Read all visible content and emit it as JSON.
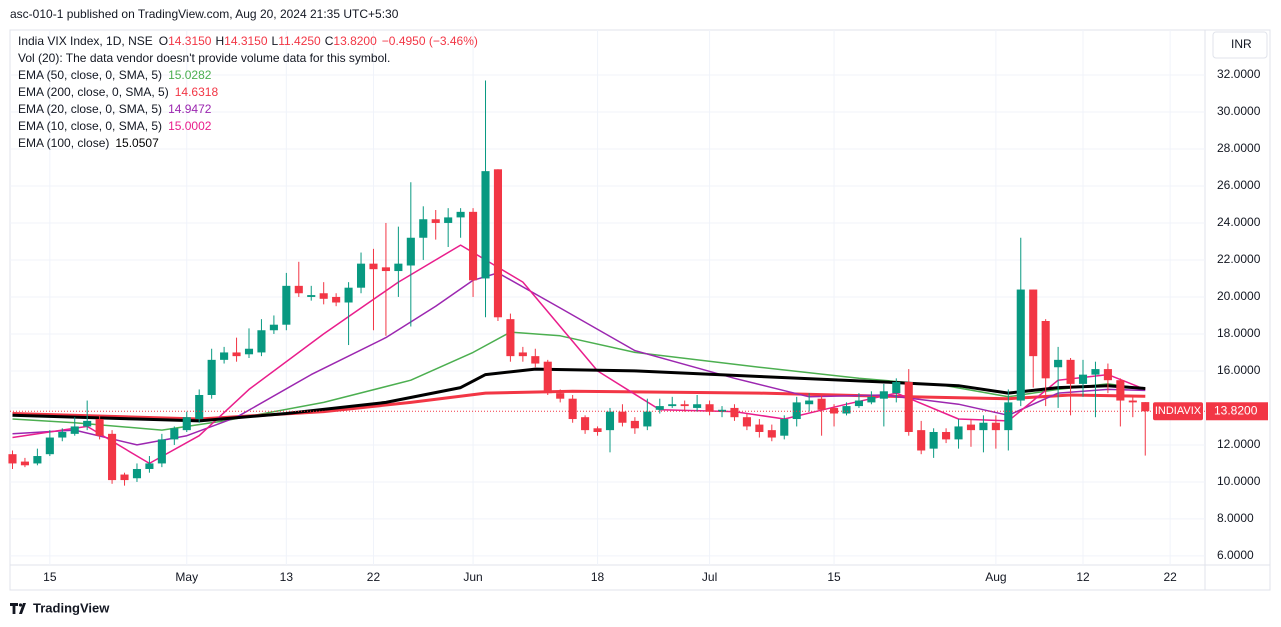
{
  "chart_data": {
    "type": "candlestick",
    "published": "asc-010-1 published on TradingView.com, Aug 20, 2024 21:35 UTC+5:30",
    "title": "India VIX Index, 1D, NSE",
    "ohlc_labels": [
      "O",
      "H",
      "L",
      "C"
    ],
    "ohlc_values": [
      "14.3150",
      "14.3150",
      "11.4250",
      "13.8200"
    ],
    "change": "−0.4950 (−3.46%)",
    "volume_note": "Vol (20): The data vendor doesn't provide volume data for this symbol.",
    "currency": "INR",
    "symbol_tag": "INDIAVIX",
    "last_price_label": "13.8200",
    "brand": "TradingView",
    "up_color": "#089981",
    "down_color": "#f23645",
    "open": [
      11.5,
      11.1,
      11.0,
      11.5,
      12.4,
      12.6,
      13.0,
      13.4,
      12.6,
      10.4,
      10.2,
      10.7,
      11.0,
      12.3,
      12.8,
      13.4,
      14.7,
      16.6,
      17.0,
      16.9,
      17.0,
      18.2,
      18.5,
      20.6,
      20.0,
      20.2,
      20.0,
      19.7,
      20.5,
      21.8,
      21.6,
      21.4,
      21.7,
      23.2,
      24.2,
      24.0,
      24.3,
      24.6,
      21.0,
      26.9,
      18.8,
      17.0,
      16.8,
      16.5,
      14.8,
      14.5,
      13.5,
      12.9,
      12.8,
      13.8,
      13.3,
      13.0,
      13.9,
      14.1,
      14.2,
      14.0,
      14.2,
      13.8,
      14.0,
      13.5,
      13.1,
      12.8,
      12.5,
      13.4,
      14.2,
      14.5,
      14.0,
      13.7,
      14.1,
      14.3,
      14.5,
      14.8,
      15.4,
      12.8,
      11.8,
      12.7,
      12.3,
      13.1,
      12.8,
      13.2,
      12.8,
      14.4,
      20.4,
      18.7,
      16.2,
      16.6,
      15.3,
      15.8,
      16.1,
      15.5,
      14.4,
      14.315
    ],
    "high": [
      11.7,
      11.3,
      11.8,
      12.8,
      12.9,
      13.5,
      14.4,
      13.6,
      12.8,
      10.5,
      11.0,
      11.4,
      12.6,
      13.0,
      13.8,
      15.0,
      17.2,
      17.3,
      17.8,
      18.3,
      18.8,
      19.0,
      21.3,
      21.9,
      20.6,
      20.8,
      20.2,
      20.8,
      22.4,
      22.6,
      24.0,
      23.8,
      26.2,
      24.9,
      24.7,
      24.8,
      24.8,
      24.8,
      31.7,
      26.9,
      19.1,
      17.3,
      17.2,
      16.6,
      15.0,
      14.7,
      13.6,
      13.0,
      14.0,
      14.2,
      13.5,
      14.5,
      14.5,
      14.6,
      14.4,
      14.7,
      14.4,
      14.1,
      14.2,
      13.7,
      13.4,
      13.1,
      13.6,
      14.6,
      14.8,
      14.7,
      14.2,
      14.3,
      14.8,
      14.9,
      15.3,
      15.6,
      16.1,
      13.3,
      12.9,
      12.9,
      13.4,
      13.4,
      13.6,
      13.6,
      15.0,
      23.2,
      20.4,
      18.8,
      17.3,
      16.7,
      16.6,
      16.5,
      16.4,
      15.6,
      14.6,
      14.315
    ],
    "low": [
      10.7,
      10.8,
      10.9,
      11.4,
      12.2,
      12.5,
      12.8,
      12.3,
      9.9,
      9.8,
      10.0,
      10.5,
      10.8,
      12.0,
      12.7,
      13.2,
      14.5,
      16.4,
      16.5,
      16.7,
      16.8,
      18.0,
      18.2,
      20.0,
      19.8,
      19.6,
      19.5,
      17.4,
      20.2,
      18.2,
      17.9,
      20.0,
      18.4,
      22.0,
      23.1,
      22.7,
      23.2,
      20.0,
      18.9,
      18.7,
      16.5,
      16.5,
      16.2,
      14.7,
      14.3,
      13.2,
      12.6,
      12.5,
      11.6,
      13.0,
      12.6,
      12.8,
      13.7,
      14.0,
      13.8,
      13.8,
      13.6,
      13.5,
      13.3,
      12.8,
      12.4,
      12.2,
      12.3,
      13.0,
      13.8,
      12.5,
      13.0,
      13.6,
      14.0,
      14.2,
      13.0,
      14.3,
      12.5,
      11.5,
      11.3,
      12.1,
      11.8,
      11.9,
      11.6,
      11.8,
      11.7,
      14.1,
      15.1,
      14.1,
      14.0,
      13.6,
      14.6,
      13.5,
      14.8,
      13.0,
      13.5,
      11.425
    ],
    "close": [
      11.0,
      10.9,
      11.4,
      12.4,
      12.7,
      13.0,
      13.3,
      12.5,
      10.1,
      10.1,
      10.7,
      11.0,
      12.3,
      12.9,
      13.5,
      14.7,
      16.6,
      17.0,
      16.8,
      17.2,
      18.2,
      18.5,
      20.6,
      20.2,
      20.1,
      19.9,
      19.7,
      20.5,
      21.8,
      21.5,
      21.4,
      21.8,
      23.2,
      24.2,
      24.0,
      24.3,
      24.6,
      20.9,
      26.8,
      18.9,
      16.8,
      16.8,
      16.4,
      14.8,
      14.5,
      13.4,
      12.8,
      12.7,
      13.8,
      13.2,
      12.9,
      13.8,
      14.1,
      14.2,
      14.1,
      14.2,
      13.8,
      13.9,
      13.5,
      13.0,
      12.7,
      12.4,
      13.4,
      14.3,
      14.4,
      13.9,
      13.7,
      14.1,
      14.4,
      14.6,
      14.9,
      15.4,
      12.7,
      11.7,
      12.7,
      12.3,
      13.0,
      12.8,
      13.2,
      12.8,
      14.3,
      20.4,
      16.8,
      15.6,
      16.6,
      15.3,
      15.8,
      16.1,
      15.5,
      14.4,
      14.3,
      13.82
    ],
    "series": [
      {
        "name": "EMA (50, close, 0, SMA, 5)",
        "last": 15.0282,
        "color": "#4caf50",
        "width": 1.5,
        "x": [
          0,
          5,
          12,
          17,
          25,
          32,
          37,
          40,
          44,
          50,
          60,
          68,
          75,
          80,
          84,
          88,
          91
        ],
        "values": [
          13.4,
          13.2,
          12.8,
          13.3,
          14.3,
          15.5,
          17.0,
          18.1,
          17.9,
          17.0,
          16.2,
          15.6,
          15.2,
          14.6,
          15.0,
          15.3,
          15.03
        ]
      },
      {
        "name": "EMA (200, close, 0, SMA, 5)",
        "last": 14.6318,
        "color": "#f23645",
        "width": 3,
        "x": [
          0,
          15,
          25,
          32,
          38,
          45,
          60,
          72,
          80,
          85,
          91
        ],
        "values": [
          13.7,
          13.4,
          13.8,
          14.3,
          14.8,
          14.9,
          14.8,
          14.6,
          14.5,
          14.7,
          14.63
        ]
      },
      {
        "name": "EMA (20, close, 0, SMA, 5)",
        "last": 14.9472,
        "color": "#9c27b0",
        "width": 1.5,
        "x": [
          0,
          5,
          10,
          14,
          18,
          24,
          30,
          34,
          37,
          39,
          44,
          50,
          58,
          64,
          70,
          76,
          80,
          84,
          88,
          91
        ],
        "values": [
          12.6,
          12.8,
          12.0,
          12.5,
          13.5,
          15.8,
          17.8,
          19.5,
          20.9,
          21.3,
          19.4,
          17.1,
          15.6,
          14.6,
          14.7,
          14.2,
          13.6,
          14.8,
          15.0,
          14.95
        ]
      },
      {
        "name": "EMA (10, close, 0, SMA, 5)",
        "last": 15.0002,
        "color": "#e91e8c",
        "width": 1.5,
        "x": [
          0,
          6,
          11,
          15,
          19,
          25,
          31,
          36,
          38,
          41,
          47,
          52,
          58,
          62,
          67,
          71,
          76,
          80,
          84,
          88,
          91
        ],
        "values": [
          12.4,
          13.0,
          11.0,
          12.5,
          15.0,
          18.0,
          20.8,
          22.8,
          22.0,
          20.8,
          16.0,
          13.9,
          13.8,
          13.4,
          14.2,
          14.8,
          13.4,
          13.3,
          15.5,
          15.8,
          15.0
        ]
      },
      {
        "name": "EMA (100, close)",
        "last": 15.0507,
        "color": "#000000",
        "width": 3,
        "x": [
          0,
          10,
          15,
          22,
          30,
          36,
          38,
          42,
          50,
          60,
          70,
          76,
          80,
          84,
          88,
          91
        ],
        "values": [
          13.6,
          13.4,
          13.3,
          13.7,
          14.3,
          15.1,
          15.8,
          16.1,
          16.0,
          15.7,
          15.4,
          15.2,
          14.8,
          15.1,
          15.2,
          15.05
        ]
      }
    ],
    "xlim": [
      -0.2,
      95.8
    ],
    "xticks": [
      {
        "value": 3,
        "label": "15"
      },
      {
        "value": 14,
        "label": "May"
      },
      {
        "value": 22,
        "label": "13"
      },
      {
        "value": 29,
        "label": "22"
      },
      {
        "value": 37,
        "label": "Jun"
      },
      {
        "value": 47,
        "label": "18"
      },
      {
        "value": 56,
        "label": "Jul"
      },
      {
        "value": 66,
        "label": "15"
      },
      {
        "value": 79,
        "label": "Aug"
      },
      {
        "value": 86,
        "label": "12"
      },
      {
        "value": 93,
        "label": "22"
      }
    ],
    "ylim": [
      5.51,
      34.43
    ],
    "yticks": [
      {
        "value": 6,
        "label": "6.0000"
      },
      {
        "value": 8,
        "label": "8.0000"
      },
      {
        "value": 10,
        "label": "10.0000"
      },
      {
        "value": 12,
        "label": "12.0000"
      },
      {
        "value": 14,
        "label": "14.0000"
      },
      {
        "value": 16,
        "label": "16.0000"
      },
      {
        "value": 18,
        "label": "18.0000"
      },
      {
        "value": 20,
        "label": "20.0000"
      },
      {
        "value": 22,
        "label": "22.0000"
      },
      {
        "value": 24,
        "label": "24.0000"
      },
      {
        "value": 26,
        "label": "26.0000"
      },
      {
        "value": 28,
        "label": "28.0000"
      },
      {
        "value": 30,
        "label": "30.0000"
      },
      {
        "value": 32,
        "label": "32.0000"
      }
    ]
  }
}
